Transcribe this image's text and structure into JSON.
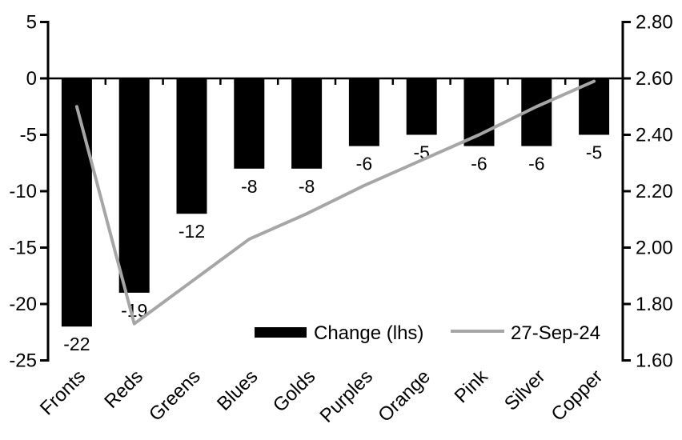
{
  "chart_data": {
    "type": "bar",
    "combo_types": [
      "bar",
      "line"
    ],
    "title": "",
    "categories": [
      "Fronts",
      "Reds",
      "Greens",
      "Blues",
      "Golds",
      "Purples",
      "Orange",
      "Pink",
      "Silver",
      "Copper"
    ],
    "series": [
      {
        "name": "Change (lhs)",
        "type": "bar",
        "axis": "left",
        "color": "#000000",
        "values": [
          -22,
          -19,
          -12,
          -8,
          -8,
          -6,
          -5,
          -6,
          -6,
          -5
        ],
        "data_labels": [
          "-22",
          "-19",
          "-12",
          "-8",
          "-8",
          "-6",
          "-5",
          "-6",
          "-6",
          "-5"
        ]
      },
      {
        "name": "27-Sep-24",
        "type": "line",
        "axis": "right",
        "color": "#a6a6a6",
        "values": [
          2.5,
          1.73,
          1.88,
          2.03,
          2.12,
          2.22,
          2.31,
          2.4,
          2.5,
          2.59
        ]
      }
    ],
    "left_axis": {
      "min": -25,
      "max": 5,
      "step": 5,
      "ticks": [
        "5",
        "0",
        "-5",
        "-10",
        "-15",
        "-20",
        "-25"
      ]
    },
    "right_axis": {
      "min": 1.6,
      "max": 2.8,
      "step": 0.2,
      "ticks": [
        "2.80",
        "2.60",
        "2.40",
        "2.20",
        "2.00",
        "1.80",
        "1.60"
      ]
    },
    "legend": {
      "position": "bottom-inside",
      "items": [
        {
          "label": "Change (lhs)",
          "swatch": "bar",
          "color": "#000000"
        },
        {
          "label": "27-Sep-24",
          "swatch": "line",
          "color": "#a6a6a6"
        }
      ]
    },
    "grid": false,
    "axis_color": "#000000",
    "background_color": "#ffffff"
  }
}
